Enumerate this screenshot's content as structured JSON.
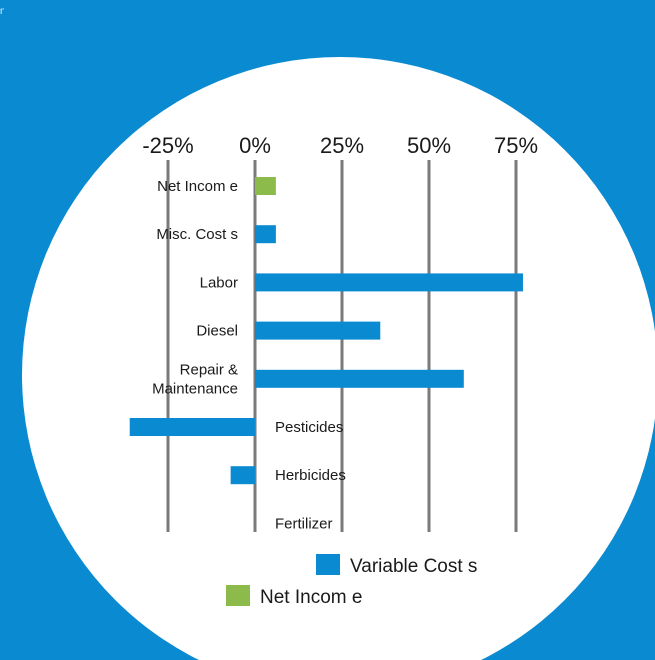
{
  "corner_text": "n",
  "chart_data": {
    "type": "bar",
    "orientation": "horizontal",
    "categories": [
      "Net Income",
      "Misc. Costs",
      "Labor",
      "Diesel",
      "Repair & Maintenance",
      "Pesticides",
      "Herbicides",
      "Fertilizer"
    ],
    "category_labels": [
      [
        "Net Incom e"
      ],
      [
        "Misc. Cost  s"
      ],
      [
        "Labor"
      ],
      [
        "Diesel"
      ],
      [
        "Repair &",
        "Maintenance"
      ],
      [
        "Pesticides"
      ],
      [
        "Herbicides"
      ],
      [
        "Fertilizer"
      ]
    ],
    "values": [
      6,
      6,
      77,
      36,
      60,
      -36,
      -7,
      0
    ],
    "series_of_bar": [
      "Net Income",
      "Variable Costs",
      "Variable Costs",
      "Variable Costs",
      "Variable Costs",
      "Variable Costs",
      "Variable Costs",
      "Variable Costs"
    ],
    "x_ticks": [
      -25,
      0,
      25,
      50,
      75
    ],
    "x_tick_labels": [
      "-25%",
      "0%",
      "25%",
      "50%",
      "75%"
    ],
    "xlim": [
      -25,
      75
    ],
    "grid": true,
    "legend_position": "bottom",
    "legend": [
      {
        "label": "Variable Cost s",
        "color": "#0a8ad1"
      },
      {
        "label": "Net Incom e",
        "color": "#8dbb4b"
      }
    ],
    "title": "",
    "xlabel": "",
    "ylabel": ""
  },
  "colors": {
    "background": "#0a8ad1",
    "circle": "#ffffff",
    "variable_costs": "#0a8ad1",
    "net_income": "#8dbb4b",
    "gridline": "#7a7a7a",
    "text": "#1a1a1a"
  }
}
